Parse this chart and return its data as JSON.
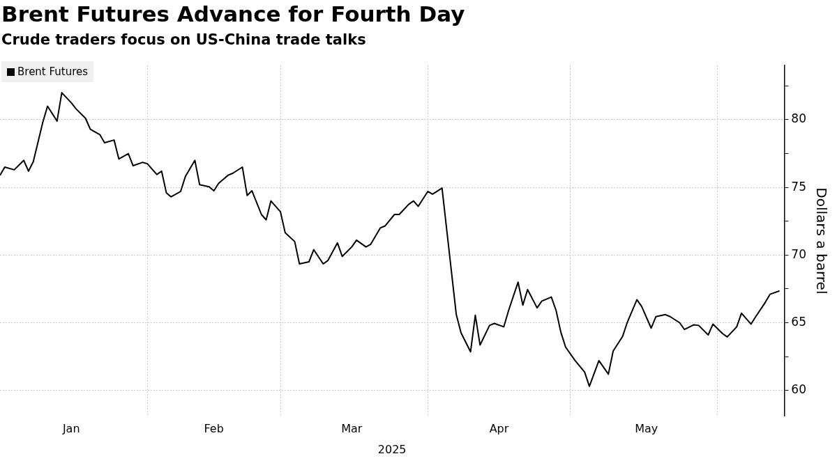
{
  "chart_data": {
    "type": "line",
    "title": "Brent Futures Advance for Fourth Day",
    "subtitle": "Crude traders focus on US-China trade talks",
    "xlabel": "2025",
    "ylabel": "Dollars a barrel",
    "x": [
      "2025-01-01",
      "2025-01-02",
      "2025-01-04",
      "2025-01-06",
      "2025-01-07",
      "2025-01-08",
      "2025-01-10",
      "2025-01-11",
      "2025-01-13",
      "2025-01-14",
      "2025-01-16",
      "2025-01-17",
      "2025-01-19",
      "2025-01-20",
      "2025-01-22",
      "2025-01-23",
      "2025-01-25",
      "2025-01-26",
      "2025-01-28",
      "2025-01-29",
      "2025-01-31",
      "2025-02-01",
      "2025-02-03",
      "2025-02-04",
      "2025-02-05",
      "2025-02-06",
      "2025-02-08",
      "2025-02-09",
      "2025-02-11",
      "2025-02-12",
      "2025-02-14",
      "2025-02-15",
      "2025-02-16",
      "2025-02-18",
      "2025-02-19",
      "2025-02-21",
      "2025-02-22",
      "2025-02-23",
      "2025-02-25",
      "2025-02-26",
      "2025-02-27",
      "2025-03-01",
      "2025-03-02",
      "2025-03-04",
      "2025-03-05",
      "2025-03-07",
      "2025-03-08",
      "2025-03-10",
      "2025-03-11",
      "2025-03-13",
      "2025-03-14",
      "2025-03-16",
      "2025-03-17",
      "2025-03-19",
      "2025-03-20",
      "2025-03-22",
      "2025-03-23",
      "2025-03-25",
      "2025-03-26",
      "2025-03-28",
      "2025-03-29",
      "2025-03-30",
      "2025-04-01",
      "2025-04-02",
      "2025-04-04",
      "2025-04-07",
      "2025-04-08",
      "2025-04-10",
      "2025-04-11",
      "2025-04-12",
      "2025-04-14",
      "2025-04-15",
      "2025-04-17",
      "2025-04-18",
      "2025-04-20",
      "2025-04-21",
      "2025-04-22",
      "2025-04-24",
      "2025-04-25",
      "2025-04-27",
      "2025-04-28",
      "2025-04-29",
      "2025-04-30",
      "2025-05-02",
      "2025-05-04",
      "2025-05-05",
      "2025-05-07",
      "2025-05-09",
      "2025-05-10",
      "2025-05-12",
      "2025-05-13",
      "2025-05-15",
      "2025-05-16",
      "2025-05-18",
      "2025-05-19",
      "2025-05-21",
      "2025-05-22",
      "2025-05-24",
      "2025-05-25",
      "2025-05-27",
      "2025-05-28",
      "2025-05-30",
      "2025-05-31",
      "2025-06-02",
      "2025-06-03",
      "2025-06-05",
      "2025-06-06",
      "2025-06-08",
      "2025-06-09",
      "2025-06-11",
      "2025-06-12",
      "2025-06-14"
    ],
    "series": [
      {
        "name": "Brent Futures",
        "color": "#000000",
        "values": [
          75.9,
          76.5,
          76.3,
          77.0,
          76.2,
          76.9,
          79.8,
          81.0,
          79.9,
          82.0,
          81.25,
          80.8,
          80.1,
          79.3,
          78.9,
          78.3,
          78.5,
          77.1,
          77.5,
          76.6,
          76.85,
          76.75,
          75.95,
          76.2,
          74.6,
          74.3,
          74.7,
          75.8,
          77.0,
          75.2,
          75.05,
          74.75,
          75.3,
          75.9,
          76.05,
          76.5,
          74.4,
          74.75,
          73.0,
          72.6,
          74.0,
          73.2,
          71.65,
          71.0,
          69.35,
          69.5,
          70.4,
          69.35,
          69.6,
          70.9,
          69.9,
          70.6,
          71.1,
          70.6,
          70.8,
          72.0,
          72.15,
          73.0,
          73.0,
          73.75,
          74.0,
          73.6,
          74.7,
          74.5,
          74.95,
          65.6,
          64.25,
          62.85,
          65.55,
          63.35,
          64.8,
          64.95,
          64.7,
          65.9,
          68.0,
          66.3,
          67.45,
          66.1,
          66.6,
          66.9,
          65.9,
          64.3,
          63.2,
          62.2,
          61.35,
          60.3,
          62.2,
          61.2,
          62.9,
          64.0,
          65.05,
          66.7,
          66.2,
          64.6,
          65.45,
          65.6,
          65.45,
          65.0,
          64.5,
          64.85,
          64.8,
          64.1,
          64.9,
          64.2,
          63.95,
          64.7,
          65.7,
          64.9,
          65.45,
          66.5,
          67.1,
          67.35
        ]
      }
    ],
    "xlim": [
      "2025-01-01",
      "2025-06-15"
    ],
    "xticks": [
      {
        "value": "2025-01-16",
        "label": "Jan"
      },
      {
        "value": "2025-02-01",
        "label": null
      },
      {
        "value": "2025-02-15",
        "label": "Feb"
      },
      {
        "value": "2025-03-01",
        "label": null
      },
      {
        "value": "2025-03-16",
        "label": "Mar"
      },
      {
        "value": "2025-04-01",
        "label": null
      },
      {
        "value": "2025-04-16",
        "label": "Apr"
      },
      {
        "value": "2025-05-01",
        "label": null
      },
      {
        "value": "2025-05-17",
        "label": "May"
      },
      {
        "value": "2025-06-01",
        "label": null
      }
    ],
    "ylim": [
      58.1,
      84
    ],
    "yticks": [
      60,
      {
        "value": 62.5,
        "label": null
      },
      65,
      {
        "value": 67.5,
        "label": null
      },
      70,
      {
        "value": 72.5,
        "label": null
      },
      75,
      {
        "value": 77.5,
        "label": null
      },
      80,
      {
        "value": 82.5,
        "label": null
      }
    ],
    "grid": true,
    "legend": "top left"
  }
}
